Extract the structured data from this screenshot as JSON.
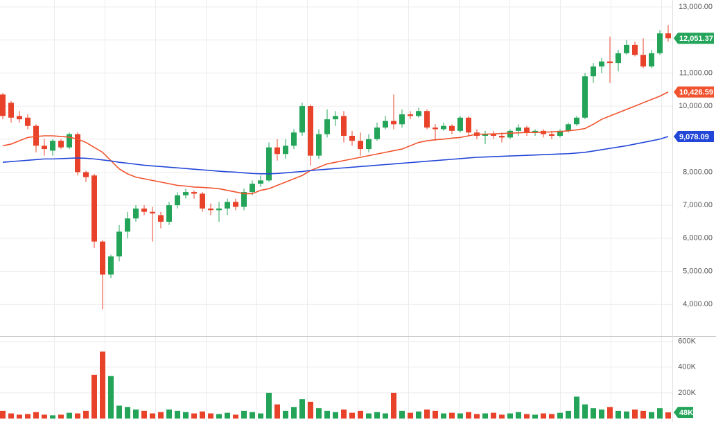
{
  "chart_data": {
    "type": "candlestick",
    "ylim": [
      3040,
      13210
    ],
    "yticks": [
      {
        "value": 4000,
        "label": "4,000.00"
      },
      {
        "value": 5000,
        "label": "5,000.00"
      },
      {
        "value": 6000,
        "label": "6,000.00"
      },
      {
        "value": 7000,
        "label": "7,000.00"
      },
      {
        "value": 8000,
        "label": "8,000.00"
      },
      {
        "value": 9000,
        "label": "9,000.00"
      },
      {
        "value": 10000,
        "label": "10,000.00"
      },
      {
        "value": 11000,
        "label": "11,000.00"
      },
      {
        "value": 12000,
        "label": "12,000.00"
      },
      {
        "value": 13000,
        "label": "13,000.00"
      }
    ],
    "grid": true,
    "colors": {
      "up": "#23a459",
      "down": "#e8432a"
    },
    "open": [
      10350,
      10100,
      9700,
      9650,
      9400,
      8800,
      8650,
      8950,
      8750,
      9150,
      8000,
      7900,
      5900,
      4900,
      5450,
      6200,
      6600,
      6900,
      6800,
      6700,
      6500,
      7000,
      7300,
      7400,
      7350,
      6900,
      6850,
      6900,
      7100,
      6950,
      7400,
      7650,
      7750,
      8750,
      8550,
      8800,
      9200,
      10000,
      8500,
      9150,
      9600,
      9700,
      9100,
      8950,
      8700,
      9000,
      9350,
      9550,
      9450,
      9750,
      9700,
      9850,
      9350,
      9300,
      9400,
      9250,
      9650,
      9200,
      9100,
      9150,
      9100,
      9050,
      9250,
      9350,
      9200,
      9250,
      9150,
      9100,
      9250,
      9450,
      9650,
      10900,
      11200,
      11350,
      11300,
      11600,
      11850,
      11550,
      11200,
      11600,
      12200
    ],
    "high": [
      10400,
      10150,
      9850,
      9750,
      9450,
      9000,
      9000,
      9000,
      9200,
      9200,
      8050,
      7950,
      5950,
      5500,
      6400,
      6800,
      7000,
      7000,
      6950,
      6800,
      7100,
      7400,
      7500,
      7450,
      7400,
      7050,
      7100,
      7200,
      7200,
      7500,
      7750,
      7900,
      8900,
      9000,
      9000,
      9300,
      10100,
      10050,
      9300,
      9900,
      9850,
      9850,
      9250,
      9200,
      9150,
      9500,
      9700,
      10350,
      9900,
      9850,
      9950,
      9900,
      9450,
      9500,
      9450,
      9700,
      9700,
      9300,
      9250,
      9250,
      9200,
      9300,
      9450,
      9400,
      9300,
      9300,
      9250,
      9300,
      9500,
      9700,
      11000,
      11300,
      11450,
      12100,
      11700,
      12000,
      11950,
      12050,
      11700,
      12300,
      12450
    ],
    "low": [
      9600,
      9500,
      9500,
      9300,
      8600,
      8500,
      8500,
      8700,
      8700,
      7900,
      7700,
      5700,
      3850,
      4800,
      5300,
      6000,
      6500,
      6700,
      5900,
      6300,
      6400,
      6900,
      7200,
      7200,
      6800,
      6700,
      6500,
      6700,
      6850,
      6850,
      7300,
      7550,
      7700,
      8350,
      8400,
      8700,
      9100,
      8200,
      8400,
      9050,
      9400,
      8900,
      8800,
      8500,
      8600,
      8950,
      9300,
      9300,
      9350,
      9600,
      9650,
      9300,
      8950,
      9250,
      9150,
      9200,
      9100,
      9000,
      8850,
      9000,
      8900,
      9000,
      9100,
      9100,
      9100,
      9050,
      9000,
      9050,
      9200,
      9400,
      9600,
      10700,
      11000,
      10700,
      11050,
      11550,
      11500,
      11150,
      11150,
      11550,
      11950
    ],
    "close": [
      9700,
      9650,
      9600,
      9400,
      8800,
      8700,
      8950,
      8750,
      9150,
      8000,
      7850,
      5900,
      4900,
      5450,
      6200,
      6600,
      6900,
      6800,
      6750,
      6500,
      7000,
      7300,
      7400,
      7350,
      6900,
      6850,
      6900,
      7100,
      6950,
      7400,
      7650,
      7750,
      8750,
      8550,
      8800,
      9200,
      10000,
      8500,
      9150,
      9600,
      9700,
      9100,
      8950,
      8700,
      9000,
      9350,
      9550,
      9450,
      9750,
      9700,
      9850,
      9350,
      9300,
      9400,
      9250,
      9650,
      9200,
      9100,
      9150,
      9100,
      9050,
      9250,
      9350,
      9200,
      9250,
      9150,
      9100,
      9250,
      9450,
      9650,
      10900,
      11200,
      11350,
      11300,
      11600,
      11850,
      11550,
      11200,
      11600,
      12200,
      12051.37
    ],
    "last_label": "12,051.37",
    "moving_averages": [
      {
        "color": "#f0532d",
        "last_label": "10,426.59",
        "values": [
          8800,
          8850,
          8950,
          9050,
          9080,
          9100,
          9100,
          9080,
          9060,
          9000,
          8900,
          8750,
          8600,
          8350,
          8100,
          7950,
          7850,
          7800,
          7750,
          7700,
          7650,
          7600,
          7580,
          7550,
          7540,
          7520,
          7500,
          7450,
          7400,
          7350,
          7350,
          7450,
          7500,
          7600,
          7700,
          7800,
          7900,
          8050,
          8150,
          8250,
          8300,
          8350,
          8400,
          8450,
          8500,
          8550,
          8600,
          8650,
          8700,
          8800,
          8900,
          8950,
          8980,
          9000,
          9030,
          9050,
          9100,
          9150,
          9150,
          9160,
          9170,
          9180,
          9190,
          9200,
          9200,
          9210,
          9220,
          9230,
          9250,
          9280,
          9320,
          9450,
          9600,
          9700,
          9800,
          9900,
          10000,
          10100,
          10200,
          10300,
          10426.59
        ]
      },
      {
        "color": "#2246d8",
        "last_label": "9,078.09",
        "values": [
          8300,
          8320,
          8340,
          8360,
          8380,
          8400,
          8400,
          8410,
          8420,
          8430,
          8420,
          8400,
          8370,
          8340,
          8300,
          8270,
          8240,
          8210,
          8190,
          8170,
          8150,
          8130,
          8110,
          8090,
          8070,
          8050,
          8030,
          8010,
          8000,
          7980,
          7960,
          7950,
          7950,
          7960,
          7980,
          8000,
          8020,
          8050,
          8070,
          8090,
          8110,
          8130,
          8150,
          8170,
          8190,
          8210,
          8230,
          8250,
          8270,
          8290,
          8310,
          8330,
          8350,
          8370,
          8390,
          8410,
          8430,
          8450,
          8460,
          8470,
          8480,
          8490,
          8500,
          8510,
          8520,
          8530,
          8540,
          8550,
          8560,
          8580,
          8600,
          8640,
          8680,
          8720,
          8760,
          8800,
          8850,
          8900,
          8950,
          9000,
          9078.09
        ]
      }
    ],
    "volume": {
      "ylim": [
        0,
        630000
      ],
      "yticks": [
        {
          "value": 200000,
          "label": "200K"
        },
        {
          "value": 400000,
          "label": "400K"
        },
        {
          "value": 600000,
          "label": "600K"
        }
      ],
      "last_label": "48K",
      "values": [
        60000,
        40000,
        30000,
        35000,
        50000,
        30000,
        25000,
        30000,
        45000,
        40000,
        60000,
        340000,
        520000,
        330000,
        100000,
        90000,
        70000,
        60000,
        40000,
        50000,
        70000,
        60000,
        50000,
        40000,
        55000,
        40000,
        35000,
        45000,
        30000,
        60000,
        50000,
        40000,
        200000,
        110000,
        60000,
        90000,
        150000,
        130000,
        80000,
        60000,
        50000,
        70000,
        45000,
        60000,
        40000,
        50000,
        40000,
        200000,
        60000,
        45000,
        55000,
        70000,
        60000,
        40000,
        45000,
        40000,
        50000,
        35000,
        40000,
        45000,
        30000,
        40000,
        50000,
        35000,
        30000,
        40000,
        35000,
        45000,
        60000,
        170000,
        110000,
        80000,
        70000,
        90000,
        60000,
        55000,
        70000,
        60000,
        50000,
        80000,
        48000
      ]
    }
  }
}
